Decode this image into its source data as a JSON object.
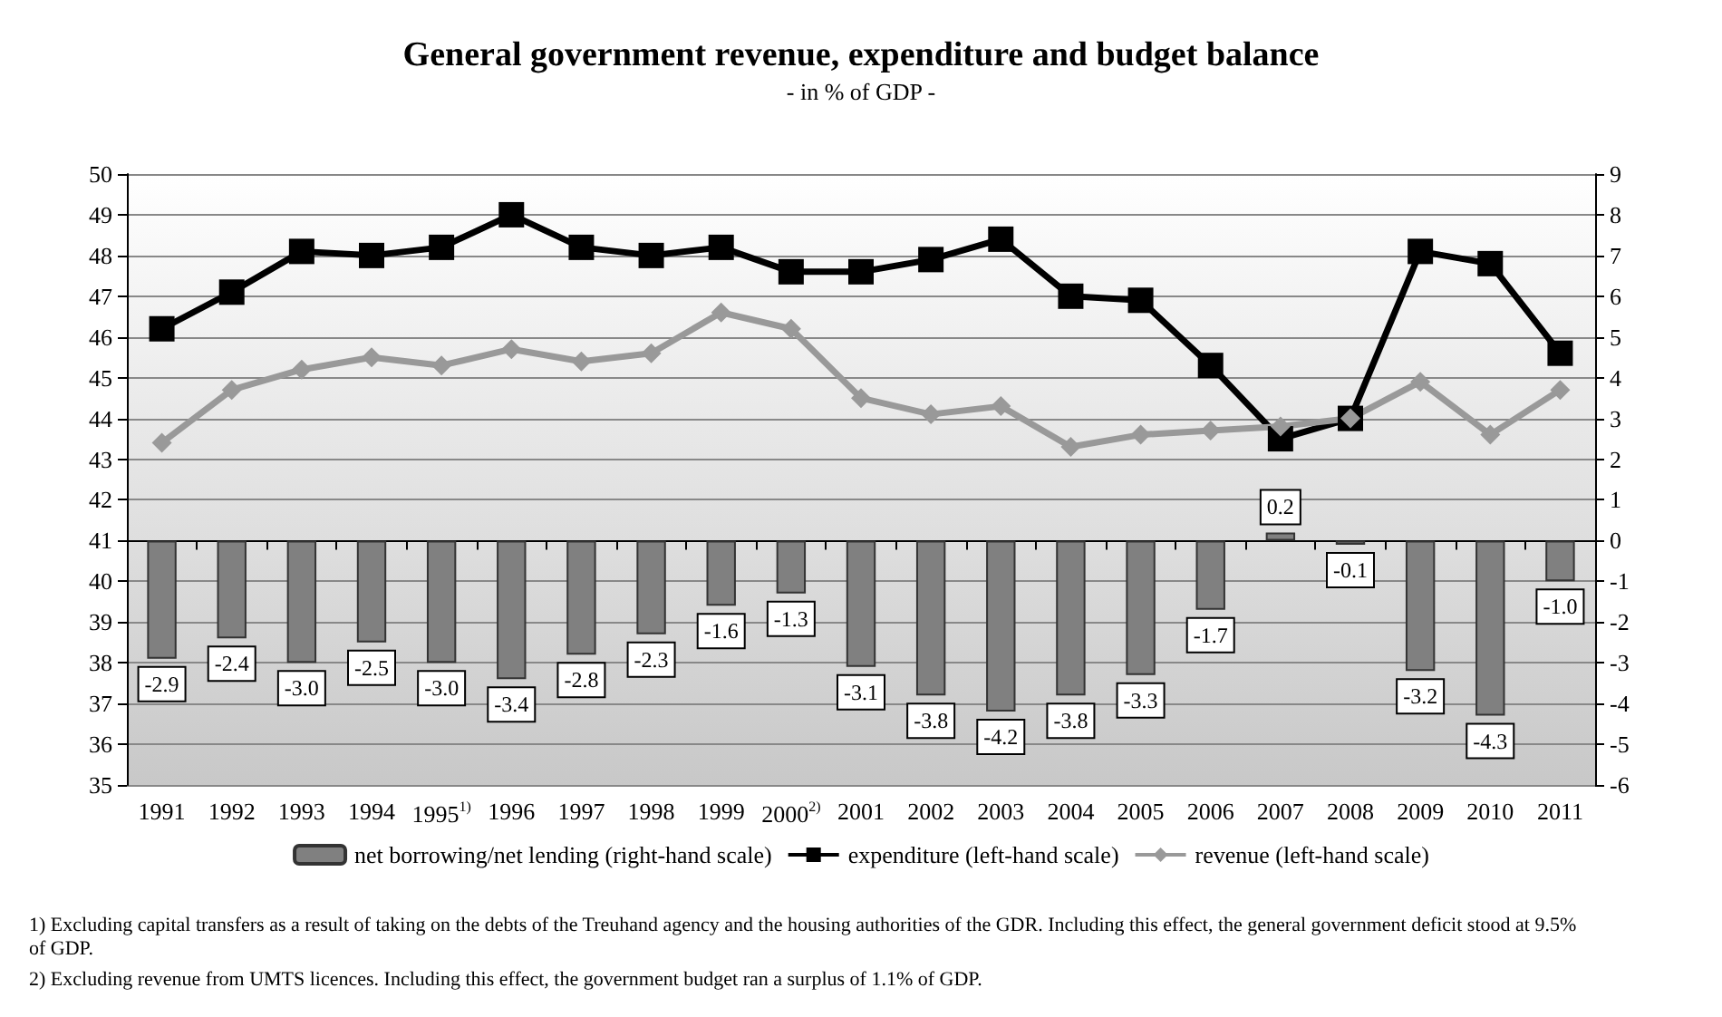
{
  "chart_data": {
    "type": "bar",
    "title": "General government revenue, expenditure and budget balance",
    "subtitle": "- in % of GDP -",
    "categories": [
      "1991",
      "1992",
      "1993",
      "1994",
      "1995$^{1)}$",
      "1996",
      "1997",
      "1998",
      "1999",
      "2000$^{2)}$",
      "2001",
      "2002",
      "2003",
      "2004",
      "2005",
      "2006",
      "2007",
      "2008",
      "2009",
      "2010",
      "2011"
    ],
    "series": [
      {
        "name": "net borrowing/net lending (right-hand scale)",
        "axis": "y2",
        "color": "#808080",
        "values": [
          -2.9,
          -2.4,
          -3.0,
          -2.5,
          -3.0,
          -3.4,
          -2.8,
          -2.3,
          -1.6,
          -1.3,
          -3.1,
          -3.8,
          -4.2,
          -3.8,
          -3.3,
          -1.7,
          0.2,
          -0.1,
          -3.2,
          -4.3,
          -1.0
        ],
        "value_labels": [
          "-2.9",
          "-2.4",
          "-3.0",
          "-2.5",
          "-3.0",
          "-3.4",
          "-2.8",
          "-2.3",
          "-1.6",
          "-1.3",
          "-3.1",
          "-3.8",
          "-4.2",
          "-3.8",
          "-3.3",
          "-1.7",
          "0.2",
          "-0.1",
          "-3.2",
          "-4.3",
          "-1.0"
        ]
      },
      {
        "name": "expenditure (left-hand scale)",
        "type": "line",
        "color": "#000000",
        "marker": "square",
        "values": [
          46.2,
          47.1,
          48.1,
          48.0,
          48.2,
          49.0,
          48.2,
          48.0,
          48.2,
          47.6,
          47.6,
          47.9,
          48.4,
          47.0,
          46.9,
          45.3,
          43.5,
          44.0,
          48.1,
          47.8,
          45.6
        ]
      },
      {
        "name": "revenue (left-hand scale)",
        "type": "line",
        "color": "#999999",
        "marker": "diamond",
        "values": [
          43.4,
          44.7,
          45.2,
          45.5,
          45.3,
          45.7,
          45.4,
          45.6,
          46.6,
          46.2,
          44.5,
          44.1,
          44.3,
          43.3,
          43.6,
          43.7,
          43.8,
          44.0,
          44.9,
          43.6,
          44.7
        ]
      }
    ],
    "ylim": [
      35,
      50
    ],
    "yticks": [
      35,
      36,
      37,
      38,
      39,
      40,
      41,
      42,
      43,
      44,
      45,
      46,
      47,
      48,
      49,
      50
    ],
    "y2lim": [
      -6,
      9
    ],
    "y2ticks": [
      -6,
      -5,
      -4,
      -3,
      -2,
      -1,
      0,
      1,
      2,
      3,
      4,
      5,
      6,
      7,
      8,
      9
    ],
    "grid": "y",
    "legend": "bottom",
    "annotations": [
      "1) Excluding capital transfers as a result of taking on the debts of the Treuhand agency and the housing authorities of the GDR. Including this effect, the general government deficit stood at 9.5% of GDP.",
      "2) Excluding revenue from UMTS licences. Including this effect, the government budget ran a surplus of 1.1% of GDP."
    ]
  }
}
